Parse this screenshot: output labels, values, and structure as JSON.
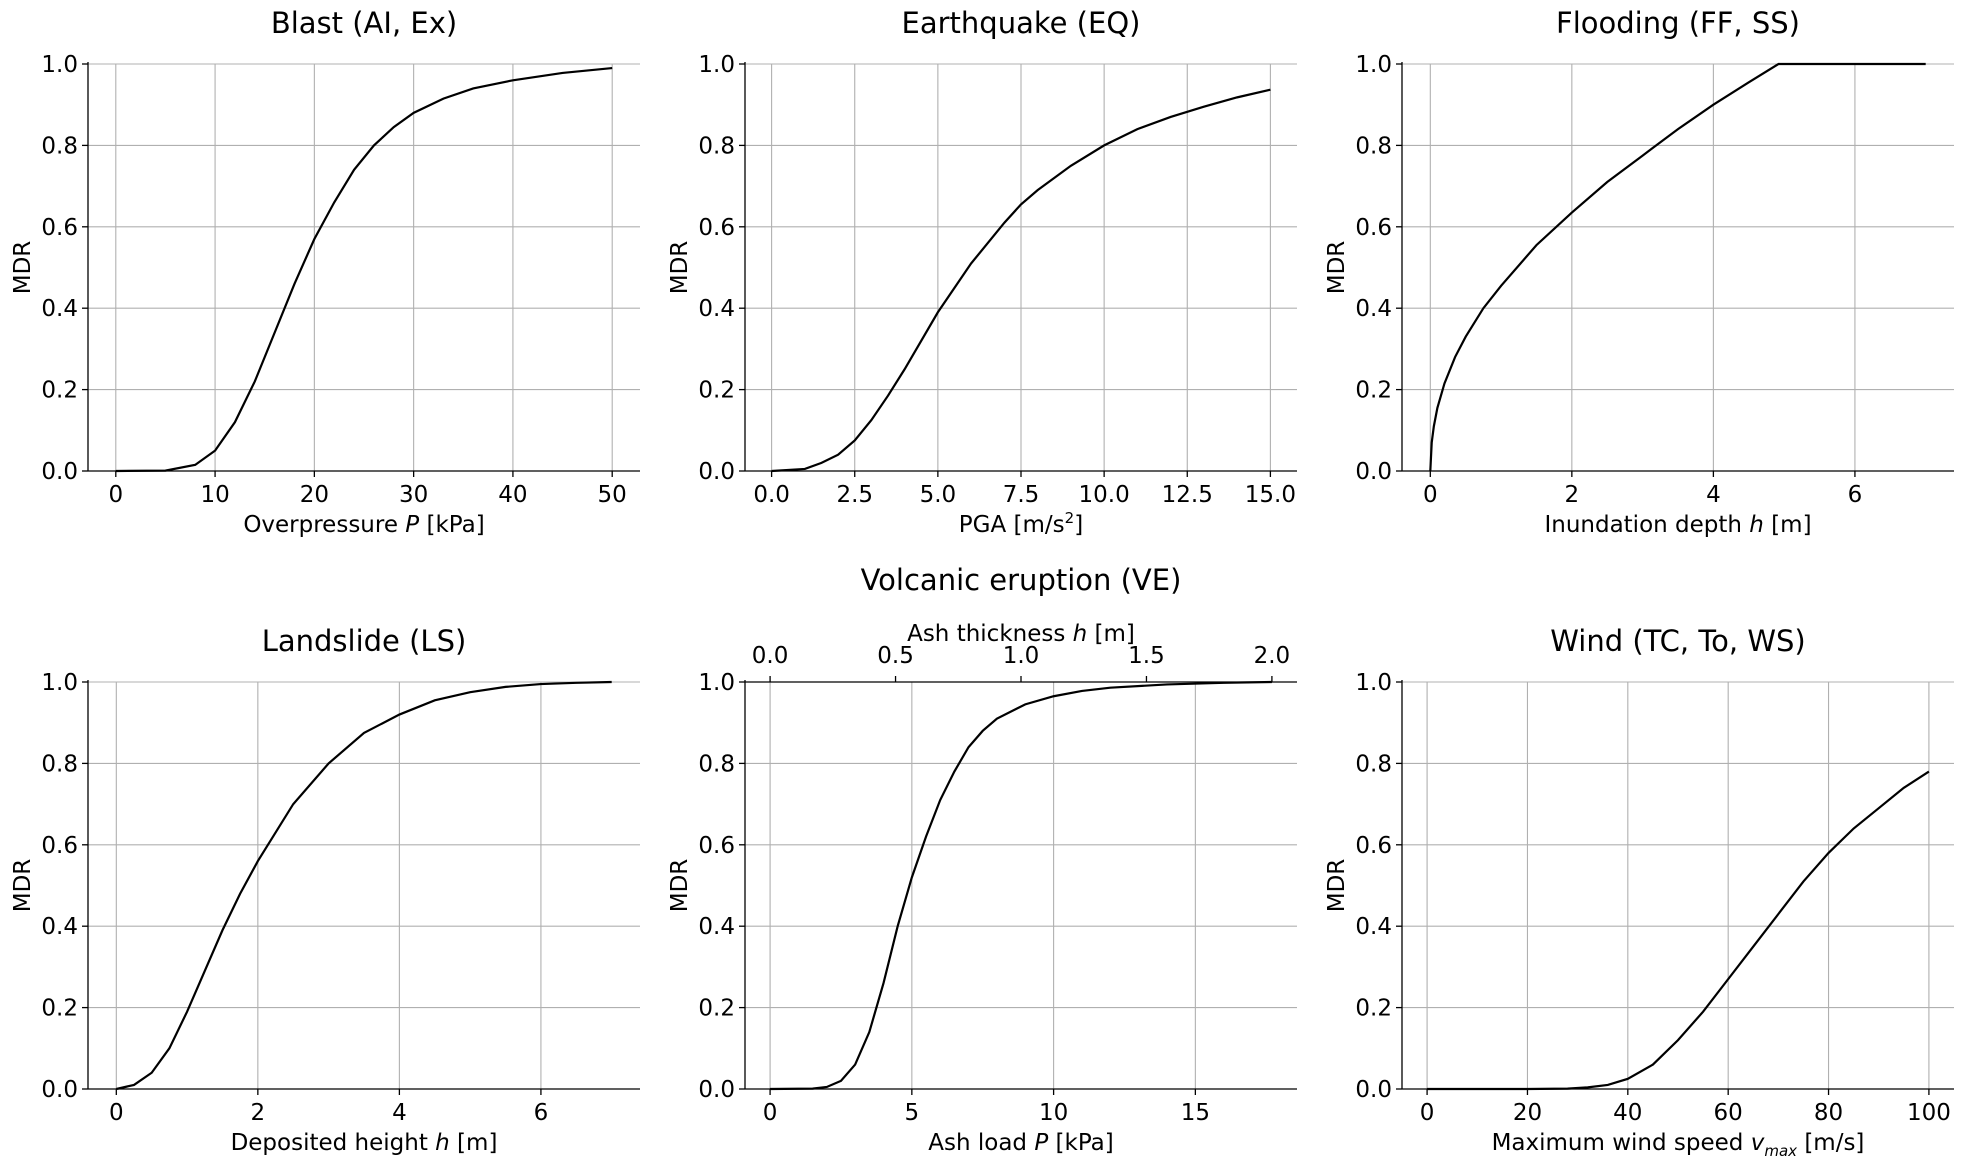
{
  "chart_data": [
    {
      "type": "line",
      "title": "Blast (AI, Ex)",
      "xlabel": {
        "pre": "Overpressure ",
        "var": "P",
        "post": " [kPa]"
      },
      "ylabel": "MDR",
      "xlim": [
        -2.8,
        52.8
      ],
      "ylim": [
        0,
        1
      ],
      "xticks": [
        0,
        10,
        20,
        30,
        40,
        50
      ],
      "xticklabels": [
        "0",
        "10",
        "20",
        "30",
        "40",
        "50"
      ],
      "yticks": [
        0,
        0.2,
        0.4,
        0.6,
        0.8,
        1.0
      ],
      "yticklabels": [
        "0.0",
        "0.2",
        "0.4",
        "0.6",
        "0.8",
        "1.0"
      ],
      "series": [
        {
          "name": "MDR",
          "x": [
            0,
            5,
            8,
            10,
            12,
            14,
            16,
            18,
            20,
            22,
            24,
            26,
            28,
            30,
            33,
            36,
            40,
            45,
            50
          ],
          "y": [
            0,
            0.001,
            0.015,
            0.05,
            0.12,
            0.22,
            0.34,
            0.46,
            0.57,
            0.66,
            0.74,
            0.8,
            0.845,
            0.88,
            0.915,
            0.94,
            0.96,
            0.978,
            0.99
          ]
        }
      ]
    },
    {
      "type": "line",
      "title": "Earthquake (EQ)",
      "xlabel": {
        "pre": "PGA [m/s",
        "sup": "2",
        "post": "]"
      },
      "ylabel": "MDR",
      "xlim": [
        -0.8,
        15.8
      ],
      "ylim": [
        0,
        1
      ],
      "xticks": [
        0,
        2.5,
        5,
        7.5,
        10,
        12.5,
        15
      ],
      "xticklabels": [
        "0.0",
        "2.5",
        "5.0",
        "7.5",
        "10.0",
        "12.5",
        "15.0"
      ],
      "yticks": [
        0,
        0.2,
        0.4,
        0.6,
        0.8,
        1.0
      ],
      "yticklabels": [
        "0.0",
        "0.2",
        "0.4",
        "0.6",
        "0.8",
        "1.0"
      ],
      "series": [
        {
          "name": "MDR",
          "x": [
            0,
            1,
            1.5,
            2,
            2.5,
            3,
            3.5,
            4,
            5,
            6,
            7,
            7.5,
            8,
            9,
            10,
            11,
            12,
            13,
            14,
            15
          ],
          "y": [
            0,
            0.005,
            0.02,
            0.04,
            0.075,
            0.125,
            0.185,
            0.25,
            0.39,
            0.51,
            0.61,
            0.655,
            0.69,
            0.75,
            0.8,
            0.84,
            0.87,
            0.895,
            0.918,
            0.937
          ]
        }
      ]
    },
    {
      "type": "line",
      "title": "Flooding (FF, SS)",
      "xlabel": {
        "pre": "Inundation depth ",
        "var": "h",
        "post": " [m]"
      },
      "ylabel": "MDR",
      "xlim": [
        -0.4,
        7.4
      ],
      "ylim": [
        0,
        1
      ],
      "xticks": [
        0,
        2,
        4,
        6
      ],
      "xticklabels": [
        "0",
        "2",
        "4",
        "6"
      ],
      "yticks": [
        0,
        0.2,
        0.4,
        0.6,
        0.8,
        1.0
      ],
      "yticklabels": [
        "0.0",
        "0.2",
        "0.4",
        "0.6",
        "0.8",
        "1.0"
      ],
      "series": [
        {
          "name": "MDR",
          "x": [
            0,
            0.02,
            0.05,
            0.1,
            0.2,
            0.35,
            0.5,
            0.75,
            1,
            1.5,
            2,
            2.5,
            3,
            3.5,
            4,
            4.5,
            4.92,
            5.5,
            6,
            7
          ],
          "y": [
            0,
            0.07,
            0.11,
            0.155,
            0.215,
            0.28,
            0.33,
            0.4,
            0.455,
            0.555,
            0.635,
            0.71,
            0.775,
            0.84,
            0.9,
            0.955,
            1.0,
            1.0,
            1.0,
            1.0
          ]
        }
      ]
    },
    {
      "type": "line",
      "title": "Landslide (LS)",
      "xlabel": {
        "pre": "Deposited height ",
        "var": "h",
        "post": " [m]"
      },
      "ylabel": "MDR",
      "xlim": [
        -0.4,
        7.4
      ],
      "ylim": [
        0,
        1
      ],
      "xticks": [
        0,
        2,
        4,
        6
      ],
      "xticklabels": [
        "0",
        "2",
        "4",
        "6"
      ],
      "yticks": [
        0,
        0.2,
        0.4,
        0.6,
        0.8,
        1.0
      ],
      "yticklabels": [
        "0.0",
        "0.2",
        "0.4",
        "0.6",
        "0.8",
        "1.0"
      ],
      "series": [
        {
          "name": "MDR",
          "x": [
            0,
            0.25,
            0.5,
            0.75,
            1,
            1.25,
            1.5,
            1.75,
            2,
            2.5,
            3,
            3.5,
            4,
            4.5,
            5,
            5.5,
            6,
            6.5,
            7
          ],
          "y": [
            0,
            0.01,
            0.04,
            0.1,
            0.19,
            0.29,
            0.39,
            0.48,
            0.56,
            0.7,
            0.8,
            0.875,
            0.92,
            0.955,
            0.975,
            0.988,
            0.995,
            0.998,
            1.0
          ]
        }
      ]
    },
    {
      "type": "line",
      "title": "Volcanic eruption (VE)",
      "xlabel": {
        "pre": "Ash load ",
        "var": "P",
        "post": " [kPa]"
      },
      "x2label": {
        "pre": "Ash thickness ",
        "var": "h",
        "post": " [m]"
      },
      "ylabel": "MDR",
      "xlim": [
        -0.885,
        18.585
      ],
      "ylim": [
        0,
        1
      ],
      "xticks": [
        0,
        5,
        10,
        15
      ],
      "xticklabels": [
        "0",
        "5",
        "10",
        "15"
      ],
      "x2lim": [
        -0.1,
        2.1
      ],
      "x2ticks": [
        0,
        0.5,
        1.0,
        1.5,
        2.0
      ],
      "x2ticklabels": [
        "0.0",
        "0.5",
        "1.0",
        "1.5",
        "2.0"
      ],
      "yticks": [
        0,
        0.2,
        0.4,
        0.6,
        0.8,
        1.0
      ],
      "yticklabels": [
        "0.0",
        "0.2",
        "0.4",
        "0.6",
        "0.8",
        "1.0"
      ],
      "series": [
        {
          "name": "MDR",
          "x": [
            0,
            1.5,
            2,
            2.5,
            3,
            3.5,
            4,
            4.5,
            5,
            5.5,
            6,
            6.5,
            7,
            7.5,
            8,
            9,
            10,
            11,
            12,
            14,
            16,
            17.7
          ],
          "y": [
            0,
            0.001,
            0.005,
            0.02,
            0.06,
            0.14,
            0.26,
            0.4,
            0.52,
            0.62,
            0.71,
            0.78,
            0.84,
            0.88,
            0.91,
            0.945,
            0.965,
            0.978,
            0.986,
            0.994,
            0.998,
            1.0
          ]
        }
      ]
    },
    {
      "type": "line",
      "title": "Wind (TC, To, WS)",
      "xlabel": {
        "pre": "Maximum wind speed ",
        "var": "v",
        "sub": "max",
        "post": " [m/s]"
      },
      "ylabel": "MDR",
      "xlim": [
        -5,
        105
      ],
      "ylim": [
        0,
        1
      ],
      "xticks": [
        0,
        20,
        40,
        60,
        80,
        100
      ],
      "xticklabels": [
        "0",
        "20",
        "40",
        "60",
        "80",
        "100"
      ],
      "yticks": [
        0,
        0.2,
        0.4,
        0.6,
        0.8,
        1.0
      ],
      "yticklabels": [
        "0.0",
        "0.2",
        "0.4",
        "0.6",
        "0.8",
        "1.0"
      ],
      "series": [
        {
          "name": "MDR",
          "x": [
            0,
            20,
            28,
            32,
            36,
            40,
            45,
            50,
            55,
            60,
            65,
            70,
            75,
            80,
            85,
            90,
            95,
            100
          ],
          "y": [
            0,
            0,
            0.001,
            0.004,
            0.01,
            0.025,
            0.06,
            0.12,
            0.19,
            0.27,
            0.35,
            0.43,
            0.51,
            0.58,
            0.64,
            0.69,
            0.74,
            0.78
          ]
        }
      ]
    }
  ]
}
